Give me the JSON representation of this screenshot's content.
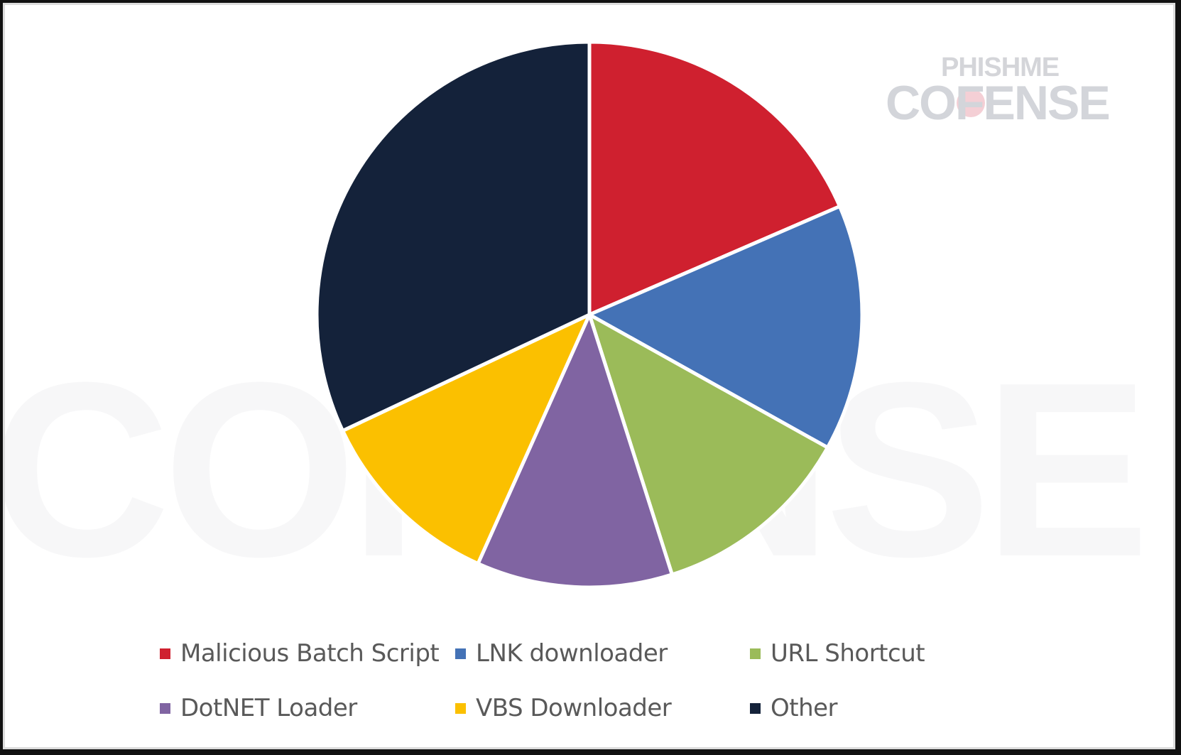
{
  "branding": {
    "logo_top": "PHISHME",
    "logo_bottom": "COFENSE",
    "watermark_text": "COFENSE"
  },
  "chart_data": {
    "type": "pie",
    "title": "",
    "start_angle_deg": 0,
    "direction": "clockwise",
    "legend_position": "bottom",
    "categories": [
      "Malicious Batch Script",
      "LNK downloader",
      "URL Shortcut",
      "DotNET Loader",
      "VBS Downloader",
      "Other"
    ],
    "values": [
      18.5,
      14.6,
      12.0,
      11.6,
      11.3,
      32.0
    ],
    "unit": "percent (estimated from slice angles; no data labels shown)",
    "colors": [
      "#CF202F",
      "#4472B6",
      "#9BBB59",
      "#8064A2",
      "#FBC000",
      "#14223A"
    ]
  },
  "legend": {
    "items": [
      {
        "label": "Malicious Batch Script",
        "color": "#CF202F"
      },
      {
        "label": "LNK downloader",
        "color": "#4472B6"
      },
      {
        "label": "URL Shortcut",
        "color": "#9BBB59"
      },
      {
        "label": "DotNET Loader",
        "color": "#8064A2"
      },
      {
        "label": "VBS Downloader",
        "color": "#FBC000"
      },
      {
        "label": "Other",
        "color": "#14223A"
      }
    ]
  }
}
